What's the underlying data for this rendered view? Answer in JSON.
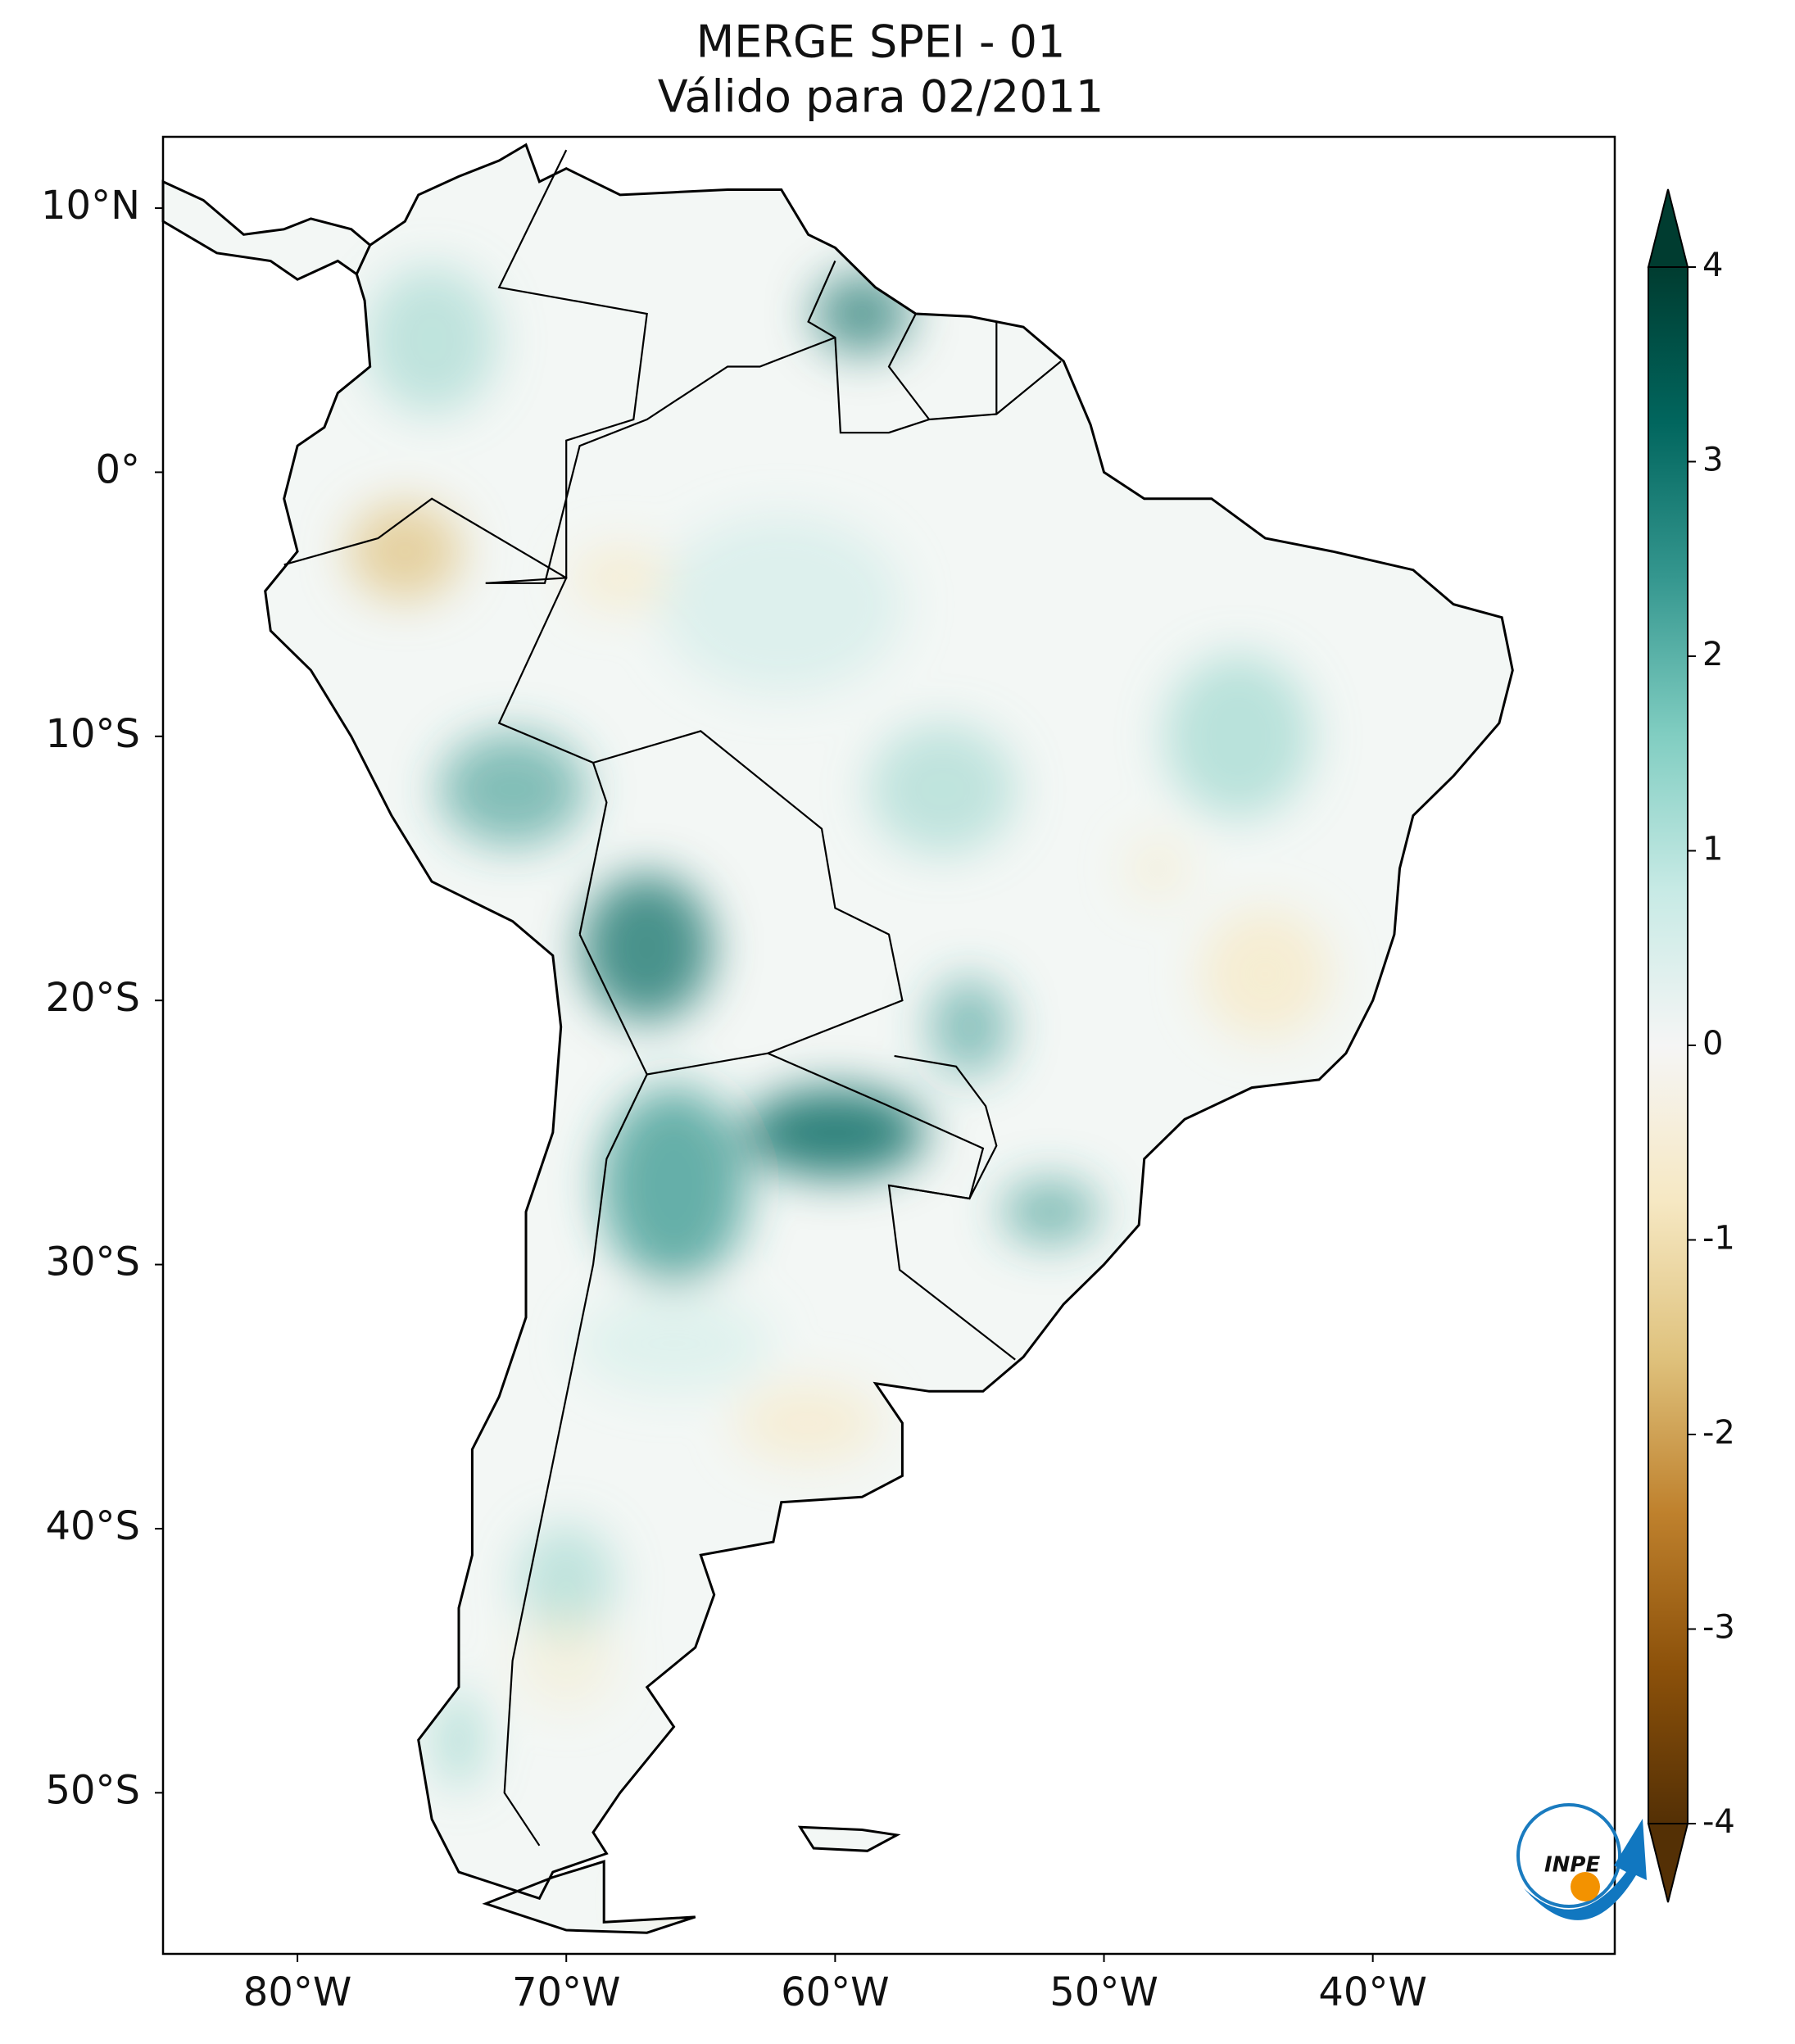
{
  "title": "MERGE   SPEI - 01",
  "subtitle": "Válido para 02/2011",
  "map": {
    "lon_range": [
      -85,
      -31
    ],
    "lat_range": [
      -56.1,
      12.7
    ],
    "lon_ticks": [
      {
        "value": -80,
        "label": "80°W"
      },
      {
        "value": -70,
        "label": "70°W"
      },
      {
        "value": -60,
        "label": "60°W"
      },
      {
        "value": -50,
        "label": "50°W"
      },
      {
        "value": -40,
        "label": "40°W"
      }
    ],
    "lat_ticks": [
      {
        "value": 10,
        "label": "10°N"
      },
      {
        "value": 0,
        "label": "0°"
      },
      {
        "value": -10,
        "label": "10°S"
      },
      {
        "value": -20,
        "label": "20°S"
      },
      {
        "value": -30,
        "label": "30°S"
      },
      {
        "value": -40,
        "label": "40°S"
      },
      {
        "value": -50,
        "label": "50°S"
      }
    ]
  },
  "colorbar": {
    "range": [
      -4,
      4
    ],
    "ticks": [
      -4,
      -3,
      -2,
      -1,
      0,
      1,
      2,
      3,
      4
    ],
    "colors": [
      "#543005",
      "#8c510a",
      "#bf812d",
      "#dfc27d",
      "#f6e8c3",
      "#f5f5f5",
      "#c7eae5",
      "#80cdc1",
      "#35978f",
      "#01665e",
      "#003c30"
    ]
  },
  "logo": {
    "text": "INPE"
  }
}
